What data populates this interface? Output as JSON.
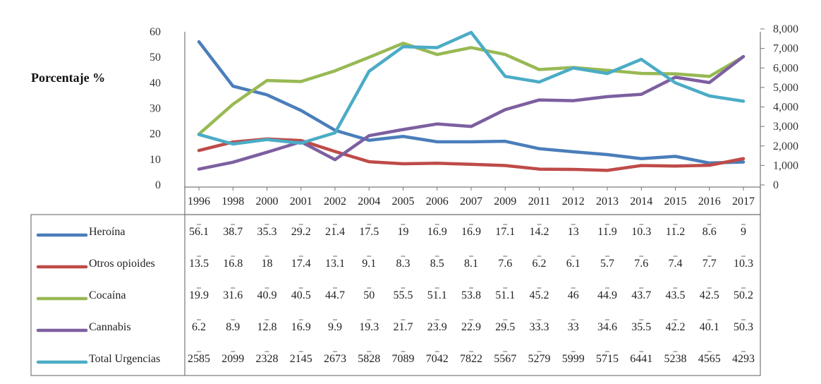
{
  "chart_data": {
    "type": "line",
    "ylabel": "Porcentaje %",
    "categories": [
      "1996",
      "1998",
      "2000",
      "2001",
      "2002",
      "2004",
      "2005",
      "2006",
      "2007",
      "2009",
      "2011",
      "2012",
      "2013",
      "2014",
      "2015",
      "2016",
      "2017"
    ],
    "left_axis": {
      "ylim": [
        0,
        60
      ],
      "ticks": [
        "0",
        "10",
        "20",
        "30",
        "40",
        "50",
        "60"
      ]
    },
    "right_axis": {
      "ylim": [
        0,
        8000
      ],
      "ticks": [
        "0",
        "1,000",
        "2,000",
        "3,000",
        "4,000",
        "5,000",
        "6,000",
        "7,000",
        "8,000"
      ]
    },
    "grid": false,
    "legend_placement": "table-left",
    "series": [
      {
        "name": "Heroína",
        "axis": "left",
        "color": "#4a7ebb",
        "values": [
          56.1,
          38.7,
          35.3,
          29.2,
          21.4,
          17.5,
          19,
          16.9,
          16.9,
          17.1,
          14.2,
          13,
          11.9,
          10.3,
          11.2,
          8.6,
          9
        ],
        "labels": [
          "56.1",
          "38.7",
          "35.3",
          "29.2",
          "21.4",
          "17.5",
          "19",
          "16.9",
          "16.9",
          "17.1",
          "14.2",
          "13",
          "11.9",
          "10.3",
          "11.2",
          "8.6",
          "9"
        ]
      },
      {
        "name": "Otros opioides",
        "axis": "left",
        "color": "#be4b48",
        "values": [
          13.5,
          16.8,
          18,
          17.4,
          13.1,
          9.1,
          8.3,
          8.5,
          8.1,
          7.6,
          6.2,
          6.1,
          5.7,
          7.6,
          7.4,
          7.7,
          10.3
        ],
        "labels": [
          "13.5",
          "16.8",
          "18",
          "17.4",
          "13.1",
          "9.1",
          "8.3",
          "8.5",
          "8.1",
          "7.6",
          "6.2",
          "6.1",
          "5.7",
          "7.6",
          "7.4",
          "7.7",
          "10.3"
        ]
      },
      {
        "name": "Cocaína",
        "axis": "left",
        "color": "#98b954",
        "values": [
          19.9,
          31.6,
          40.9,
          40.5,
          44.7,
          50,
          55.5,
          51.1,
          53.8,
          51.1,
          45.2,
          46,
          44.9,
          43.7,
          43.5,
          42.5,
          50.2
        ],
        "labels": [
          "19.9",
          "31.6",
          "40.9",
          "40.5",
          "44.7",
          "50",
          "55.5",
          "51.1",
          "53.8",
          "51.1",
          "45.2",
          "46",
          "44.9",
          "43.7",
          "43.5",
          "42.5",
          "50.2"
        ]
      },
      {
        "name": "Cannabis",
        "axis": "left",
        "color": "#7d5fa0",
        "values": [
          6.2,
          8.9,
          12.8,
          16.9,
          9.9,
          19.3,
          21.7,
          23.9,
          22.9,
          29.5,
          33.3,
          33,
          34.6,
          35.5,
          42.2,
          40.1,
          50.3
        ],
        "labels": [
          "6.2",
          "8.9",
          "12.8",
          "16.9",
          "9.9",
          "19.3",
          "21.7",
          "23.9",
          "22.9",
          "29.5",
          "33.3",
          "33",
          "34.6",
          "35.5",
          "42.2",
          "40.1",
          "50.3"
        ]
      },
      {
        "name": "Total Urgencias",
        "axis": "right",
        "color": "#4bacc6",
        "values": [
          2585,
          2099,
          2328,
          2145,
          2673,
          5828,
          7089,
          7042,
          7822,
          5567,
          5279,
          5999,
          5715,
          6441,
          5238,
          4565,
          4293
        ],
        "labels": [
          "2585",
          "2099",
          "2328",
          "2145",
          "2673",
          "5828",
          "7089",
          "7042",
          "7822",
          "5567",
          "5279",
          "5999",
          "5715",
          "6441",
          "5238",
          "4565",
          "4293"
        ]
      }
    ]
  }
}
